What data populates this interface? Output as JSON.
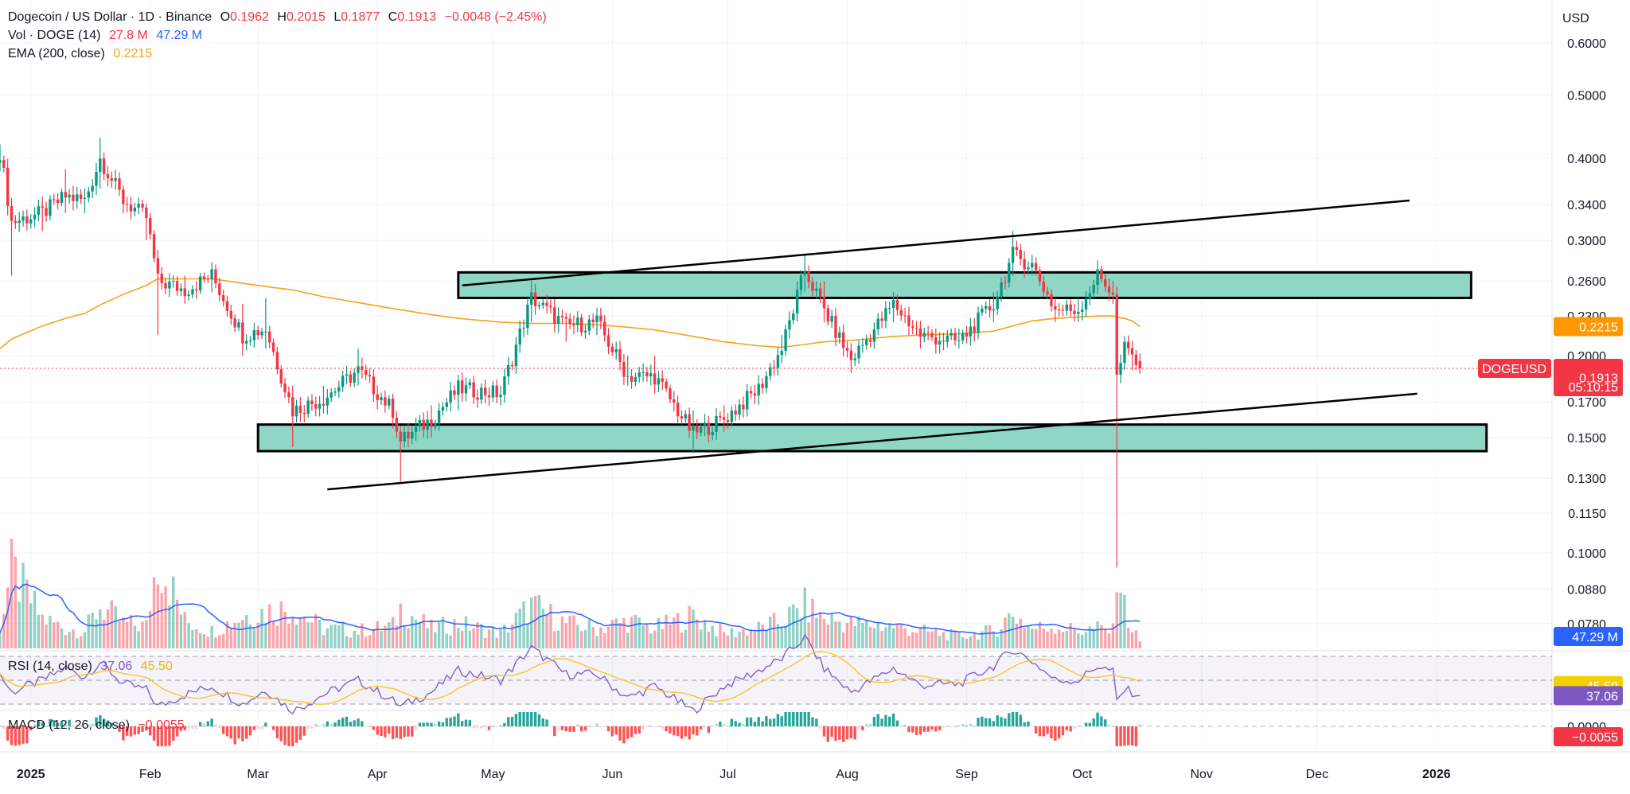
{
  "header": {
    "symbol": "Dogecoin / US Dollar · 1D · Binance",
    "o_label": "O",
    "o_value": "0.1962",
    "h_label": "H",
    "h_value": "0.2015",
    "l_label": "L",
    "l_value": "0.1877",
    "c_label": "C",
    "c_value": "0.1913",
    "change": "−0.0048 (−2.45%)",
    "vol_label": "Vol · DOGE (14)",
    "vol_value": "27.8 M",
    "vol_ma": "47.29 M",
    "ema_label": "EMA (200, close)",
    "ema_value": "0.2215",
    "currency": "USD"
  },
  "price_axis": {
    "ticks": [
      "0.6000",
      "0.5000",
      "0.4000",
      "0.3400",
      "0.3000",
      "0.2600",
      "0.2300",
      "0.2000",
      "0.1700",
      "0.1500",
      "0.1300",
      "0.1150",
      "0.1000",
      "0.0880",
      "0.0780"
    ],
    "symbol_tag": "DOGEUSD",
    "last_price": "0.1913",
    "countdown": "05:10:15",
    "ema_tag": "0.2215",
    "vol_tag": "47.29 M"
  },
  "rsi": {
    "label": "RSI (14, close)",
    "value": "37.06",
    "ma_value": "45.50"
  },
  "macd": {
    "label": "MACD (12, 26, close)",
    "value": "−0.0055",
    "axis_zero": "0.0000"
  },
  "time_axis": [
    "2025",
    "Feb",
    "Mar",
    "Apr",
    "May",
    "Jun",
    "Jul",
    "Aug",
    "Sep",
    "Oct",
    "Nov",
    "Dec",
    "2026"
  ],
  "colors": {
    "up": "#089981",
    "down": "#f23645",
    "ema": "#f7a21b",
    "zone_fill": "#8fd6c6",
    "vol_ma": "#2962ff",
    "rsi_line": "#7e57c2",
    "rsi_ma": "#f5c518",
    "badge_red": "#f23645",
    "badge_orange": "#ff9800",
    "badge_blue": "#2962ff",
    "badge_purple": "#7e57c2",
    "badge_yellow": "#f5d000"
  },
  "chart_data": {
    "type": "candlestick",
    "scale": "log",
    "interval": "1D",
    "x_range": [
      "2024-12-24",
      "2026-01-31"
    ],
    "y_range": [
      0.0725,
      0.66
    ],
    "ema_200_last": 0.2215,
    "last": {
      "open": 0.1962,
      "high": 0.2015,
      "low": 0.1877,
      "close": 0.1913,
      "change": -0.0048,
      "change_pct": -2.45
    },
    "anchors": [
      {
        "date": "2024-12-24",
        "close": 0.41,
        "low": 0.39,
        "high": 0.42,
        "ema": 0.205,
        "vol": 90,
        "rsi": 55
      },
      {
        "date": "2024-12-27",
        "close": 0.32,
        "low": 0.265,
        "high": 0.345,
        "ema": 0.212,
        "vol": 310,
        "rsi": 40
      },
      {
        "date": "2025-01-04",
        "close": 0.33,
        "low": 0.31,
        "high": 0.35,
        "ema": 0.222,
        "vol": 120,
        "rsi": 50
      },
      {
        "date": "2025-01-10",
        "close": 0.35,
        "low": 0.33,
        "high": 0.385,
        "ema": 0.228,
        "vol": 80,
        "rsi": 60
      },
      {
        "date": "2025-01-15",
        "close": 0.345,
        "low": 0.33,
        "high": 0.36,
        "ema": 0.232,
        "vol": 70,
        "rsi": 53
      },
      {
        "date": "2025-01-19",
        "close": 0.4,
        "low": 0.36,
        "high": 0.43,
        "ema": 0.239,
        "vol": 170,
        "rsi": 65
      },
      {
        "date": "2025-01-25",
        "close": 0.345,
        "low": 0.33,
        "high": 0.36,
        "ema": 0.248,
        "vol": 100,
        "rsi": 47
      },
      {
        "date": "2025-01-31",
        "close": 0.325,
        "low": 0.3,
        "high": 0.335,
        "ema": 0.256,
        "vol": 90,
        "rsi": 42
      },
      {
        "date": "2025-02-03",
        "close": 0.26,
        "low": 0.215,
        "high": 0.29,
        "ema": 0.262,
        "vol": 380,
        "rsi": 28
      },
      {
        "date": "2025-02-10",
        "close": 0.252,
        "low": 0.24,
        "high": 0.265,
        "ema": 0.262,
        "vol": 110,
        "rsi": 38
      },
      {
        "date": "2025-02-17",
        "close": 0.265,
        "low": 0.25,
        "high": 0.275,
        "ema": 0.262,
        "vol": 70,
        "rsi": 45
      },
      {
        "date": "2025-02-25",
        "close": 0.215,
        "low": 0.2,
        "high": 0.24,
        "ema": 0.258,
        "vol": 130,
        "rsi": 30
      },
      {
        "date": "2025-03-03",
        "close": 0.22,
        "low": 0.205,
        "high": 0.245,
        "ema": 0.255,
        "vol": 150,
        "rsi": 42
      },
      {
        "date": "2025-03-10",
        "close": 0.165,
        "low": 0.145,
        "high": 0.18,
        "ema": 0.252,
        "vol": 160,
        "rsi": 24
      },
      {
        "date": "2025-03-18",
        "close": 0.172,
        "low": 0.165,
        "high": 0.18,
        "ema": 0.246,
        "vol": 80,
        "rsi": 38
      },
      {
        "date": "2025-03-27",
        "close": 0.19,
        "low": 0.18,
        "high": 0.205,
        "ema": 0.241,
        "vol": 70,
        "rsi": 50
      },
      {
        "date": "2025-04-05",
        "close": 0.165,
        "low": 0.155,
        "high": 0.175,
        "ema": 0.236,
        "vol": 90,
        "rsi": 33
      },
      {
        "date": "2025-04-07",
        "close": 0.148,
        "low": 0.128,
        "high": 0.155,
        "ema": 0.235,
        "vol": 160,
        "rsi": 28
      },
      {
        "date": "2025-04-15",
        "close": 0.16,
        "low": 0.15,
        "high": 0.168,
        "ema": 0.231,
        "vol": 80,
        "rsi": 40
      },
      {
        "date": "2025-04-22",
        "close": 0.178,
        "low": 0.165,
        "high": 0.182,
        "ema": 0.228,
        "vol": 100,
        "rsi": 58
      },
      {
        "date": "2025-05-03",
        "close": 0.175,
        "low": 0.168,
        "high": 0.18,
        "ema": 0.225,
        "vol": 60,
        "rsi": 50
      },
      {
        "date": "2025-05-11",
        "close": 0.245,
        "low": 0.225,
        "high": 0.26,
        "ema": 0.224,
        "vol": 170,
        "rsi": 77
      },
      {
        "date": "2025-05-20",
        "close": 0.222,
        "low": 0.21,
        "high": 0.232,
        "ema": 0.224,
        "vol": 100,
        "rsi": 55
      },
      {
        "date": "2025-05-28",
        "close": 0.225,
        "low": 0.215,
        "high": 0.235,
        "ema": 0.223,
        "vol": 80,
        "rsi": 55
      },
      {
        "date": "2025-06-05",
        "close": 0.186,
        "low": 0.18,
        "high": 0.2,
        "ema": 0.221,
        "vol": 110,
        "rsi": 35
      },
      {
        "date": "2025-06-12",
        "close": 0.186,
        "low": 0.175,
        "high": 0.2,
        "ema": 0.219,
        "vol": 80,
        "rsi": 45
      },
      {
        "date": "2025-06-22",
        "close": 0.152,
        "low": 0.142,
        "high": 0.165,
        "ema": 0.214,
        "vol": 130,
        "rsi": 24
      },
      {
        "date": "2025-06-30",
        "close": 0.16,
        "low": 0.153,
        "high": 0.168,
        "ema": 0.21,
        "vol": 60,
        "rsi": 45
      },
      {
        "date": "2025-07-09",
        "close": 0.178,
        "low": 0.17,
        "high": 0.182,
        "ema": 0.207,
        "vol": 80,
        "rsi": 58
      },
      {
        "date": "2025-07-15",
        "close": 0.205,
        "low": 0.195,
        "high": 0.215,
        "ema": 0.206,
        "vol": 110,
        "rsi": 68
      },
      {
        "date": "2025-07-21",
        "close": 0.27,
        "low": 0.25,
        "high": 0.285,
        "ema": 0.208,
        "vol": 170,
        "rsi": 86
      },
      {
        "date": "2025-07-26",
        "close": 0.235,
        "low": 0.225,
        "high": 0.26,
        "ema": 0.21,
        "vol": 120,
        "rsi": 60
      },
      {
        "date": "2025-08-02",
        "close": 0.197,
        "low": 0.188,
        "high": 0.205,
        "ema": 0.211,
        "vol": 100,
        "rsi": 40
      },
      {
        "date": "2025-08-13",
        "close": 0.24,
        "low": 0.225,
        "high": 0.25,
        "ema": 0.214,
        "vol": 90,
        "rsi": 60
      },
      {
        "date": "2025-08-20",
        "close": 0.215,
        "low": 0.205,
        "high": 0.222,
        "ema": 0.215,
        "vol": 70,
        "rsi": 46
      },
      {
        "date": "2025-08-30",
        "close": 0.21,
        "low": 0.205,
        "high": 0.22,
        "ema": 0.216,
        "vol": 50,
        "rsi": 47
      },
      {
        "date": "2025-09-08",
        "close": 0.24,
        "low": 0.225,
        "high": 0.25,
        "ema": 0.218,
        "vol": 70,
        "rsi": 62
      },
      {
        "date": "2025-09-13",
        "close": 0.285,
        "low": 0.265,
        "high": 0.31,
        "ema": 0.222,
        "vol": 140,
        "rsi": 76
      },
      {
        "date": "2025-09-18",
        "close": 0.275,
        "low": 0.265,
        "high": 0.285,
        "ema": 0.226,
        "vol": 80,
        "rsi": 66
      },
      {
        "date": "2025-09-24",
        "close": 0.235,
        "low": 0.225,
        "high": 0.245,
        "ema": 0.228,
        "vol": 90,
        "rsi": 50
      },
      {
        "date": "2025-09-30",
        "close": 0.235,
        "low": 0.225,
        "high": 0.245,
        "ema": 0.229,
        "vol": 70,
        "rsi": 50
      },
      {
        "date": "2025-10-05",
        "close": 0.265,
        "low": 0.255,
        "high": 0.27,
        "ema": 0.23,
        "vol": 80,
        "rsi": 62
      },
      {
        "date": "2025-10-09",
        "close": 0.25,
        "low": 0.24,
        "high": 0.26,
        "ema": 0.23,
        "vol": 70,
        "rsi": 57
      },
      {
        "date": "2025-10-10",
        "close": 0.185,
        "low": 0.095,
        "high": 0.255,
        "ema": 0.229,
        "vol": 390,
        "rsi": 32
      },
      {
        "date": "2025-10-12",
        "close": 0.205,
        "low": 0.19,
        "high": 0.21,
        "ema": 0.228,
        "vol": 160,
        "rsi": 42
      },
      {
        "date": "2025-10-14",
        "close": 0.2,
        "low": 0.19,
        "high": 0.21,
        "ema": 0.226,
        "vol": 80,
        "rsi": 40
      },
      {
        "date": "2025-10-16",
        "close": 0.1913,
        "low": 0.1877,
        "high": 0.2015,
        "ema": 0.2215,
        "vol": 27.8,
        "rsi": 37.06
      }
    ],
    "zones": [
      {
        "name": "resistance",
        "from": "2025-04-22",
        "to": "2026-01-10",
        "low": 0.245,
        "high": 0.268
      },
      {
        "name": "support",
        "from": "2025-03-01",
        "to": "2026-01-14",
        "low": 0.143,
        "high": 0.157
      }
    ],
    "trendlines": [
      {
        "name": "upper",
        "from": {
          "date": "2025-04-23",
          "price": 0.256
        },
        "to": {
          "date": "2025-12-25",
          "price": 0.345
        }
      },
      {
        "name": "lower",
        "from": {
          "date": "2025-03-19",
          "price": 0.125
        },
        "to": {
          "date": "2025-12-27",
          "price": 0.175
        }
      }
    ]
  }
}
